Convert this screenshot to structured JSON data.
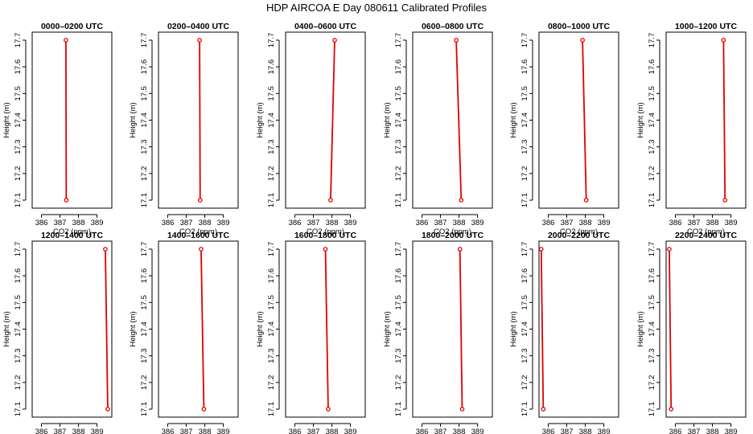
{
  "title": "HDP AIRCOA E  Day 080611  Calibrated Profiles",
  "chart_data": {
    "type": "line",
    "layout": "2 rows x 6 columns",
    "xlabel": "CO2 (ppm)",
    "ylabel": "Height (m)",
    "xlim": [
      385.5,
      389.8
    ],
    "ylim": [
      17.07,
      17.73
    ],
    "xticks": [
      386,
      387,
      388,
      389
    ],
    "yticks": [
      17.1,
      17.2,
      17.3,
      17.4,
      17.5,
      17.6,
      17.7
    ],
    "series_color": "#e00000",
    "panels": [
      {
        "title": "0000–0200 UTC",
        "heights": [
          17.1,
          17.7
        ],
        "co2": [
          387.34,
          387.32
        ]
      },
      {
        "title": "0200–0400 UTC",
        "heights": [
          17.1,
          17.7
        ],
        "co2": [
          387.75,
          387.72
        ]
      },
      {
        "title": "0400–0600 UTC",
        "heights": [
          17.1,
          17.7
        ],
        "co2": [
          387.93,
          388.15
        ]
      },
      {
        "title": "0600–0800 UTC",
        "heights": [
          17.1,
          17.7
        ],
        "co2": [
          388.12,
          387.85
        ]
      },
      {
        "title": "0800–1000 UTC",
        "heights": [
          17.1,
          17.7
        ],
        "co2": [
          388.05,
          387.85
        ]
      },
      {
        "title": "1000–1200 UTC",
        "heights": [
          17.1,
          17.7
        ],
        "co2": [
          388.68,
          388.6
        ]
      },
      {
        "title": "1200–1400 UTC",
        "heights": [
          17.1,
          17.7
        ],
        "co2": [
          389.58,
          389.45
        ]
      },
      {
        "title": "1400–1600 UTC",
        "heights": [
          17.1,
          17.7
        ],
        "co2": [
          387.95,
          387.8
        ]
      },
      {
        "title": "1600–1800 UTC",
        "heights": [
          17.1,
          17.7
        ],
        "co2": [
          387.8,
          387.65
        ]
      },
      {
        "title": "1800–2000 UTC",
        "heights": [
          17.1,
          17.7
        ],
        "co2": [
          388.17,
          388.05
        ]
      },
      {
        "title": "2000–2200 UTC",
        "heights": [
          17.1,
          17.7
        ],
        "co2": [
          385.73,
          385.62
        ]
      },
      {
        "title": "2200–2400 UTC",
        "heights": [
          17.1,
          17.7
        ],
        "co2": [
          385.77,
          385.67
        ]
      }
    ]
  }
}
